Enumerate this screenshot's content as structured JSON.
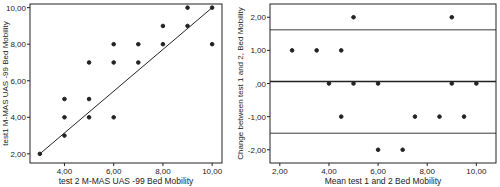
{
  "chart_data": [
    {
      "type": "scatter",
      "x_label": "test 2 M-MAS UAS -99 Bed Mobility",
      "y_label": "test1 M-MAS UAS -99 Bed Mobility",
      "x": [
        3,
        4,
        4,
        4,
        5,
        5,
        5,
        6,
        6,
        6,
        7,
        7,
        8,
        8,
        9,
        9,
        10,
        10
      ],
      "values": [
        2,
        3,
        4,
        5,
        4,
        5,
        7,
        4,
        7,
        8,
        7,
        8,
        8,
        9,
        9,
        10,
        10,
        8
      ],
      "reference_line": {
        "x": [
          3,
          10
        ],
        "y": [
          2,
          10
        ]
      },
      "xlim": [
        2.6,
        10.4
      ],
      "ylim": [
        1.5,
        10.2
      ],
      "xticks": [
        {
          "value": 4,
          "label": "4,00"
        },
        {
          "value": 6,
          "label": "6,00"
        },
        {
          "value": 8,
          "label": "8,00"
        },
        {
          "value": 10,
          "label": "10,00"
        }
      ],
      "yticks": [
        {
          "value": 2,
          "label": "2,00"
        },
        {
          "value": 4,
          "label": "4,00"
        },
        {
          "value": 6,
          "label": "6,00"
        },
        {
          "value": 8,
          "label": "8,00"
        },
        {
          "value": 10,
          "label": "10,00"
        }
      ],
      "color": "#222222",
      "marker": "circle",
      "grid": false
    },
    {
      "type": "scatter",
      "x_label": "Mean test 1 and 2 Bed Mobility",
      "y_label": "Change between test 1 and 2, Bed Mobility",
      "x": [
        2.5,
        3.5,
        4.5,
        5,
        9,
        4,
        5,
        6,
        9,
        10,
        4.5,
        7.5,
        8.5,
        9.5,
        6,
        7
      ],
      "values": [
        1,
        1,
        1,
        2,
        2,
        0,
        0,
        0,
        0,
        0,
        -1,
        -1,
        -1,
        -1,
        -2,
        -2
      ],
      "reference_lines": [
        1.62,
        0.06,
        -1.5
      ],
      "xlim": [
        1.6,
        10.8
      ],
      "ylim": [
        -2.4,
        2.4
      ],
      "xticks": [
        {
          "value": 2,
          "label": "2,00"
        },
        {
          "value": 4,
          "label": "4,00"
        },
        {
          "value": 6,
          "label": "6,00"
        },
        {
          "value": 8,
          "label": "8,00"
        },
        {
          "value": 10,
          "label": "10,00"
        }
      ],
      "yticks": [
        {
          "value": -2,
          "label": "-2,00"
        },
        {
          "value": -1,
          "label": "-1,00"
        },
        {
          "value": 0,
          "label": ",00"
        },
        {
          "value": 1,
          "label": "1,00"
        },
        {
          "value": 2,
          "label": "2,00"
        }
      ],
      "color": "#222222",
      "marker": "circle",
      "grid": false
    }
  ]
}
